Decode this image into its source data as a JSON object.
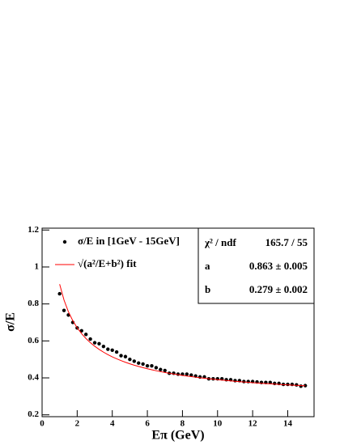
{
  "chart_data": {
    "type": "scatter",
    "x_label": "Eπ (GeV)",
    "y_label": "σ/E",
    "xlim": [
      0,
      15.5
    ],
    "ylim": [
      0.19,
      1.21
    ],
    "xticks": [
      0,
      2,
      4,
      6,
      8,
      10,
      12,
      14
    ],
    "yticks": [
      0.2,
      0.4,
      0.6,
      0.8,
      1,
      1.2
    ],
    "x": [
      1,
      1.25,
      1.5,
      1.75,
      2,
      2.25,
      2.5,
      2.75,
      3,
      3.25,
      3.5,
      3.75,
      4,
      4.25,
      4.5,
      4.75,
      5,
      5.25,
      5.5,
      5.75,
      6,
      6.25,
      6.5,
      6.75,
      7,
      7.25,
      7.5,
      7.75,
      8,
      8.25,
      8.5,
      8.75,
      9,
      9.25,
      9.5,
      9.75,
      10,
      10.25,
      10.5,
      10.75,
      11,
      11.25,
      11.5,
      11.75,
      12,
      12.25,
      12.5,
      12.75,
      13,
      13.25,
      13.5,
      13.75,
      14,
      14.25,
      14.5,
      14.75,
      15
    ],
    "series": [
      {
        "name": "σ/E in [1GeV - 15GeV]",
        "color": "#000000",
        "style": "points",
        "values": [
          0.855,
          0.765,
          0.74,
          0.7,
          0.67,
          0.655,
          0.635,
          0.61,
          0.59,
          0.585,
          0.57,
          0.555,
          0.55,
          0.54,
          0.52,
          0.515,
          0.5,
          0.49,
          0.48,
          0.475,
          0.465,
          0.465,
          0.455,
          0.445,
          0.44,
          0.425,
          0.425,
          0.42,
          0.42,
          0.42,
          0.415,
          0.41,
          0.405,
          0.405,
          0.395,
          0.395,
          0.395,
          0.395,
          0.39,
          0.39,
          0.385,
          0.385,
          0.38,
          0.38,
          0.38,
          0.378,
          0.375,
          0.375,
          0.375,
          0.37,
          0.37,
          0.365,
          0.365,
          0.365,
          0.362,
          0.355,
          0.358
        ]
      },
      {
        "name": "√(a²/E+b²) fit",
        "color": "#ff0000",
        "style": "line",
        "values": [
          0.907,
          0.8208,
          0.7578,
          0.7093,
          0.6711,
          0.6394,
          0.613,
          0.5905,
          0.5711,
          0.5541,
          0.5391,
          0.5258,
          0.5138,
          0.5031,
          0.4933,
          0.4844,
          0.4762,
          0.4687,
          0.4618,
          0.4554,
          0.4494,
          0.4439,
          0.4387,
          0.4338,
          0.4292,
          0.4249,
          0.4209,
          0.4171,
          0.4134,
          0.41,
          0.4068,
          0.4037,
          0.4007,
          0.398,
          0.3953,
          0.3928,
          0.3903,
          0.388,
          0.3858,
          0.3836,
          0.3815,
          0.3796,
          0.3777,
          0.3758,
          0.374,
          0.3724,
          0.3707,
          0.3691,
          0.3676,
          0.3662,
          0.3648,
          0.3634,
          0.362,
          0.3607,
          0.3595,
          0.3583,
          0.3571
        ]
      }
    ],
    "stats": [
      [
        "χ² / ndf",
        "165.7 / 55"
      ],
      [
        "a",
        "0.863 ± 0.005"
      ],
      [
        "b",
        "0.279 ± 0.002"
      ]
    ]
  }
}
